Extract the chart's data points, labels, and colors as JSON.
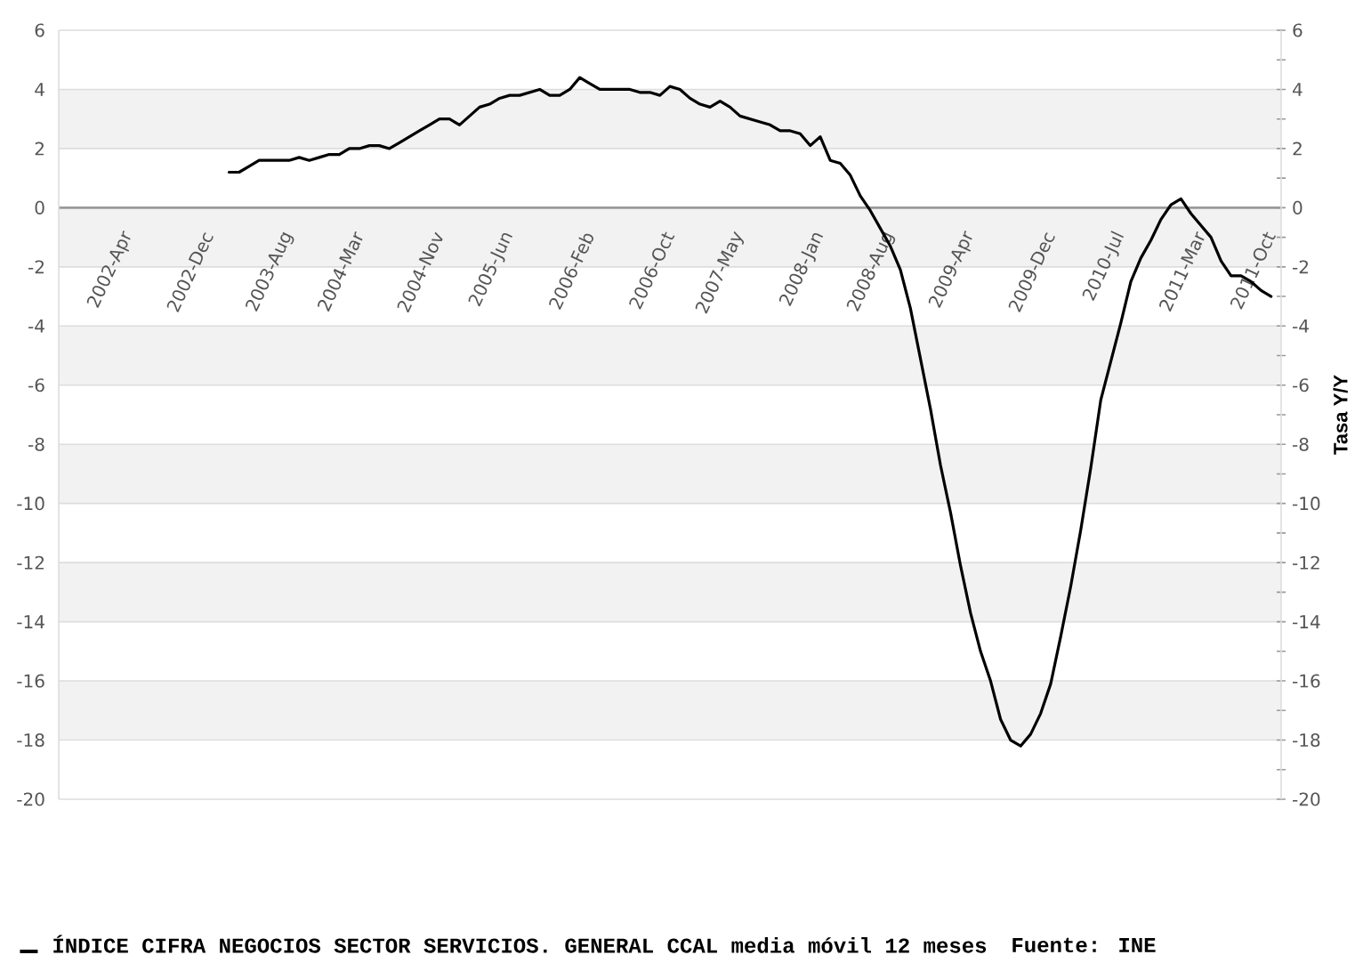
{
  "chart_data": {
    "type": "line",
    "x": [
      "2003-02",
      "2003-03",
      "2003-04",
      "2003-05",
      "2003-06",
      "2003-07",
      "2003-08",
      "2003-09",
      "2003-10",
      "2003-11",
      "2003-12",
      "2004-01",
      "2004-02",
      "2004-03",
      "2004-04",
      "2004-05",
      "2004-06",
      "2004-07",
      "2004-08",
      "2004-09",
      "2004-10",
      "2004-11",
      "2004-12",
      "2005-01",
      "2005-02",
      "2005-03",
      "2005-04",
      "2005-05",
      "2005-06",
      "2005-07",
      "2005-08",
      "2005-09",
      "2005-10",
      "2005-11",
      "2005-12",
      "2006-01",
      "2006-02",
      "2006-03",
      "2006-04",
      "2006-05",
      "2006-06",
      "2006-07",
      "2006-08",
      "2006-09",
      "2006-10",
      "2006-11",
      "2006-12",
      "2007-01",
      "2007-02",
      "2007-03",
      "2007-04",
      "2007-05",
      "2007-06",
      "2007-07",
      "2007-08",
      "2007-09",
      "2007-10",
      "2007-11",
      "2007-12",
      "2008-01",
      "2008-02",
      "2008-03",
      "2008-04",
      "2008-05",
      "2008-06",
      "2008-07",
      "2008-08",
      "2008-09",
      "2008-10",
      "2008-11",
      "2008-12",
      "2009-01",
      "2009-02",
      "2009-03",
      "2009-04",
      "2009-05",
      "2009-06",
      "2009-07",
      "2009-08",
      "2009-09",
      "2009-10",
      "2009-11",
      "2009-12",
      "2010-01",
      "2010-02",
      "2010-03",
      "2010-04",
      "2010-05",
      "2010-06",
      "2010-07",
      "2010-08",
      "2010-09",
      "2010-10",
      "2010-11",
      "2010-12",
      "2011-01",
      "2011-02",
      "2011-03",
      "2011-04",
      "2011-05",
      "2011-06",
      "2011-07",
      "2011-08",
      "2011-09",
      "2011-10"
    ],
    "series": [
      {
        "name": "ÍNDICE CIFRA NEGOCIOS SECTOR SERVICIOS. GENERAL CCAL media móvil 12 meses",
        "color": "#000000",
        "values": [
          1.2,
          1.2,
          1.4,
          1.6,
          1.6,
          1.6,
          1.6,
          1.7,
          1.6,
          1.7,
          1.8,
          1.8,
          2.0,
          2.0,
          2.1,
          2.1,
          2.0,
          2.2,
          2.4,
          2.6,
          2.8,
          3.0,
          3.0,
          2.8,
          3.1,
          3.4,
          3.5,
          3.7,
          3.8,
          3.8,
          3.9,
          4.0,
          3.8,
          3.8,
          4.0,
          4.4,
          4.2,
          4.0,
          4.0,
          4.0,
          4.0,
          3.9,
          3.9,
          3.8,
          4.1,
          4.0,
          3.7,
          3.5,
          3.4,
          3.6,
          3.4,
          3.1,
          3.0,
          2.9,
          2.8,
          2.6,
          2.6,
          2.5,
          2.1,
          2.4,
          1.6,
          1.5,
          1.1,
          0.4,
          -0.1,
          -0.7,
          -1.3,
          -2.1,
          -3.4,
          -5.1,
          -6.8,
          -8.7,
          -10.3,
          -12.1,
          -13.7,
          -15.0,
          -16.0,
          -17.3,
          -18.0,
          -18.2,
          -17.8,
          -17.1,
          -16.1,
          -14.5,
          -12.8,
          -10.9,
          -8.8,
          -6.5,
          -5.2,
          -3.9,
          -2.5,
          -1.7,
          -1.1,
          -0.4,
          0.1,
          0.3,
          -0.2,
          -0.6,
          -1.0,
          -1.8,
          -2.3,
          -2.3,
          -2.5,
          -2.8,
          -3.0
        ]
      }
    ],
    "xlim": [
      "2001-09",
      "2011-11"
    ],
    "xticks": [
      {
        "value": "2002-04",
        "label": "2002-Apr"
      },
      {
        "value": "2002-12",
        "label": "2002-Dec"
      },
      {
        "value": "2003-08",
        "label": "2003-Aug"
      },
      {
        "value": "2004-03",
        "label": "2004-Mar"
      },
      {
        "value": "2004-11",
        "label": "2004-Nov"
      },
      {
        "value": "2005-06",
        "label": "2005-Jun"
      },
      {
        "value": "2006-02",
        "label": "2006-Feb"
      },
      {
        "value": "2006-10",
        "label": "2006-Oct"
      },
      {
        "value": "2007-05",
        "label": "2007-May"
      },
      {
        "value": "2008-01",
        "label": "2008-Jan"
      },
      {
        "value": "2008-08",
        "label": "2008-Aug"
      },
      {
        "value": "2009-04",
        "label": "2009-Apr"
      },
      {
        "value": "2009-12",
        "label": "2009-Dec"
      },
      {
        "value": "2010-07",
        "label": "2010-Jul"
      },
      {
        "value": "2011-03",
        "label": "2011-Mar"
      },
      {
        "value": "2011-10",
        "label": "2011-Oct"
      }
    ],
    "ylim": [
      -20,
      6
    ],
    "yticks": [
      -20,
      -18,
      -16,
      -14,
      -12,
      -10,
      -8,
      -6,
      -4,
      -2,
      0,
      2,
      4,
      6
    ],
    "y2lim": [
      -20,
      6
    ],
    "y2ticks": [
      -20,
      {
        "value": -19,
        "label": null
      },
      -18,
      {
        "value": -17,
        "label": null
      },
      -16,
      {
        "value": -15,
        "label": null
      },
      -14,
      {
        "value": -13,
        "label": null
      },
      -12,
      {
        "value": -11,
        "label": null
      },
      -10,
      {
        "value": -9,
        "label": null
      },
      -8,
      {
        "value": -7,
        "label": null
      },
      -6,
      {
        "value": -5,
        "label": null
      },
      -4,
      {
        "value": -3,
        "label": null
      },
      -2,
      {
        "value": -1,
        "label": null
      },
      0,
      {
        "value": 1,
        "label": null
      },
      2,
      {
        "value": 3,
        "label": null
      },
      4,
      {
        "value": 5,
        "label": null
      },
      6
    ],
    "y2label": "Tasa Y/Y",
    "grid": "y",
    "legend": "bottom",
    "marker": "none",
    "line_style": "solid",
    "annotations": [
      "Fuente: INE"
    ]
  }
}
